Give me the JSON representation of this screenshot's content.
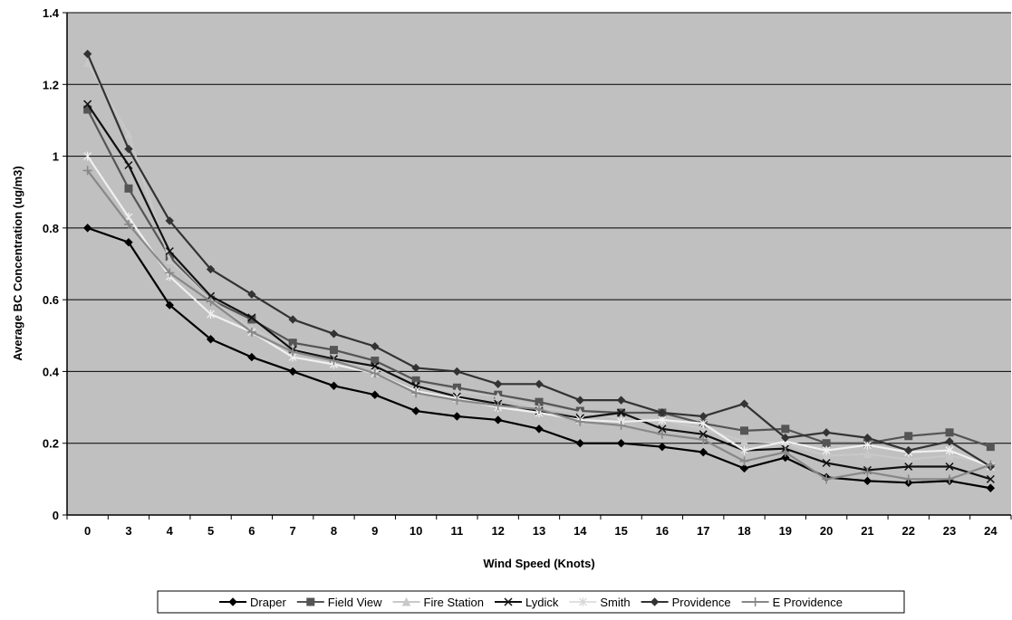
{
  "chart_data": {
    "type": "line",
    "title": "",
    "xlabel": "Wind Speed (Knots)",
    "ylabel": "Average BC Concentration (ug/m3)",
    "ylim": [
      0,
      1.4
    ],
    "yticks": [
      "0",
      "0.2",
      "0.4",
      "0.6",
      "0.8",
      "1",
      "1.2",
      "1.4"
    ],
    "grid": true,
    "legend_position": "bottom",
    "categories": [
      "0",
      "3",
      "4",
      "5",
      "6",
      "7",
      "8",
      "9",
      "10",
      "11",
      "12",
      "13",
      "14",
      "15",
      "16",
      "17",
      "18",
      "19",
      "20",
      "21",
      "22",
      "23",
      "24"
    ],
    "series": [
      {
        "name": "Draper",
        "color": "#000000",
        "marker": "diamond",
        "values": [
          0.8,
          0.76,
          0.585,
          0.49,
          0.44,
          0.4,
          0.36,
          0.335,
          0.29,
          0.275,
          0.265,
          0.24,
          0.2,
          0.2,
          0.19,
          0.175,
          0.13,
          0.16,
          0.105,
          0.095,
          0.09,
          0.095,
          0.075
        ]
      },
      {
        "name": "Field View",
        "color": "#555555",
        "marker": "square",
        "values": [
          1.13,
          0.91,
          0.72,
          0.6,
          0.545,
          0.48,
          0.46,
          0.43,
          0.375,
          0.355,
          0.335,
          0.315,
          0.29,
          0.285,
          0.285,
          0.255,
          0.235,
          0.24,
          0.2,
          0.2,
          0.22,
          0.23,
          0.19
        ]
      },
      {
        "name": "Fire Station",
        "color": "#c8c8c8",
        "marker": "triangle",
        "values": [
          1.26,
          1.06,
          0.71,
          0.6,
          0.52,
          0.465,
          0.435,
          0.41,
          0.36,
          0.345,
          0.33,
          0.3,
          0.285,
          0.27,
          0.265,
          0.24,
          0.205,
          0.2,
          0.165,
          0.17,
          0.155,
          0.165,
          0.145
        ]
      },
      {
        "name": "Lydick",
        "color": "#111111",
        "marker": "x",
        "values": [
          1.145,
          0.975,
          0.735,
          0.61,
          0.55,
          0.46,
          0.435,
          0.415,
          0.36,
          0.33,
          0.31,
          0.29,
          0.27,
          0.285,
          0.24,
          0.225,
          0.18,
          0.185,
          0.145,
          0.125,
          0.135,
          0.135,
          0.1
        ]
      },
      {
        "name": "Smith",
        "color": "#f0f0f0",
        "marker": "star",
        "values": [
          1.0,
          0.83,
          0.665,
          0.56,
          0.51,
          0.44,
          0.42,
          0.395,
          0.345,
          0.325,
          0.3,
          0.285,
          0.265,
          0.26,
          0.265,
          0.255,
          0.18,
          0.205,
          0.18,
          0.195,
          0.175,
          0.18,
          0.135
        ]
      },
      {
        "name": "Providence",
        "color": "#333333",
        "marker": "diamond",
        "values": [
          1.285,
          1.02,
          0.82,
          0.685,
          0.615,
          0.545,
          0.505,
          0.47,
          0.41,
          0.4,
          0.365,
          0.365,
          0.32,
          0.32,
          0.285,
          0.275,
          0.31,
          0.215,
          0.23,
          0.215,
          0.18,
          0.205,
          0.135
        ]
      },
      {
        "name": "E Providence",
        "color": "#888888",
        "marker": "plus",
        "values": [
          0.96,
          0.81,
          0.675,
          0.595,
          0.51,
          0.455,
          0.43,
          0.395,
          0.34,
          0.32,
          0.305,
          0.295,
          0.26,
          0.25,
          0.225,
          0.21,
          0.15,
          0.175,
          0.1,
          0.12,
          0.1,
          0.1,
          0.14
        ]
      }
    ]
  }
}
